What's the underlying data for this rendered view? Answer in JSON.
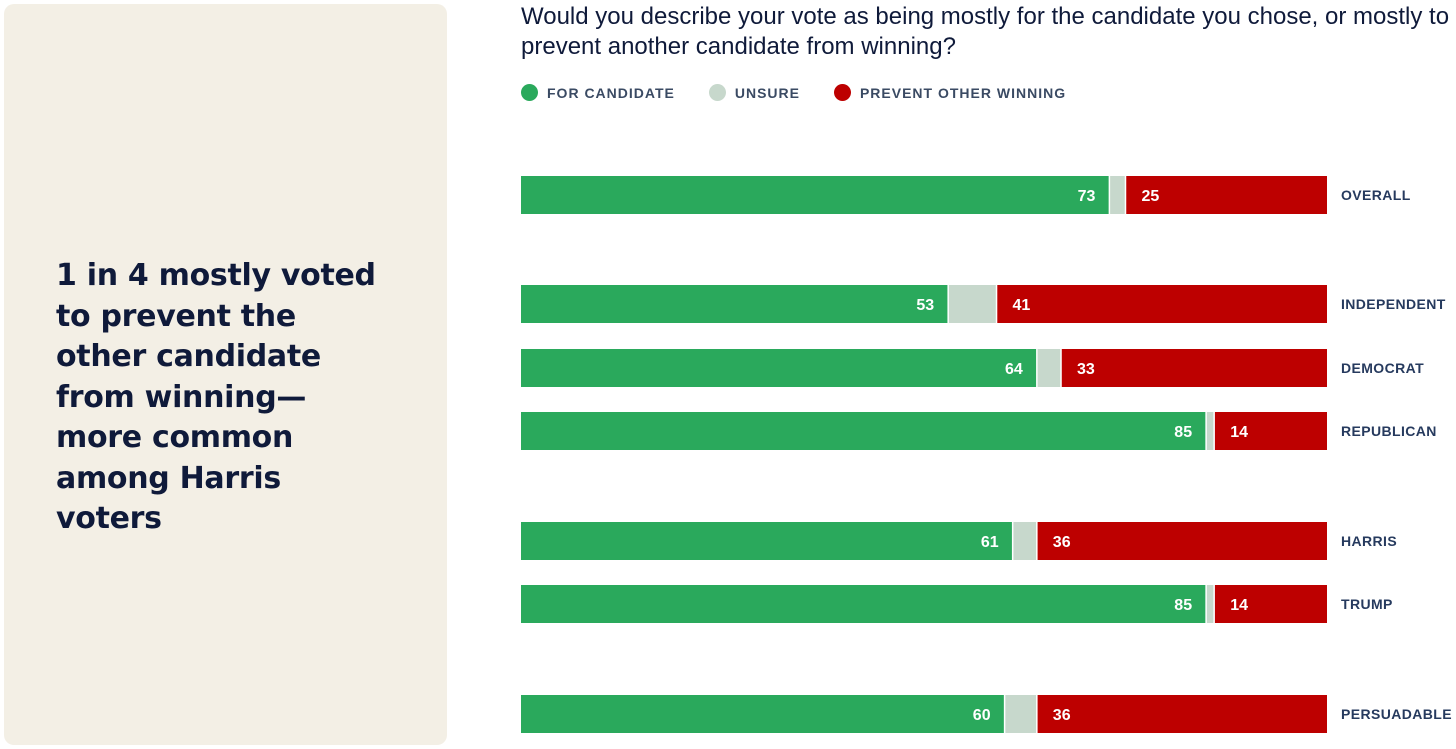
{
  "headline": "1 in 4 mostly voted to prevent the other candidate from winning— more common among Harris voters",
  "colors": {
    "for_candidate": "#2aa95c",
    "unsure": "#c7d8cc",
    "prevent": "#bd0000",
    "panel": "#f3efe5",
    "text_dark": "#0f1a3a"
  },
  "chart_data": {
    "type": "bar",
    "orientation": "horizontal",
    "stacked": true,
    "title": "Would you describe your vote as being mostly for the candidate you chose, or mostly to prevent another candidate from winning?",
    "legend": [
      {
        "key": "for_candidate",
        "label": "FOR CANDIDATE",
        "color": "#2aa95c"
      },
      {
        "key": "unsure",
        "label": "UNSURE",
        "color": "#c7d8cc"
      },
      {
        "key": "prevent",
        "label": "PREVENT OTHER WINNING",
        "color": "#bd0000"
      }
    ],
    "xlim": [
      0,
      100
    ],
    "categories": [
      "OVERALL",
      "INDEPENDENT",
      "DEMOCRAT",
      "REPUBLICAN",
      "HARRIS",
      "TRUMP",
      "PERSUADABLE"
    ],
    "groups": [
      [
        "OVERALL"
      ],
      [
        "INDEPENDENT",
        "DEMOCRAT",
        "REPUBLICAN"
      ],
      [
        "HARRIS",
        "TRUMP"
      ],
      [
        "PERSUADABLE"
      ]
    ],
    "series": [
      {
        "name": "FOR CANDIDATE",
        "values": [
          73,
          53,
          64,
          85,
          61,
          85,
          60
        ]
      },
      {
        "name": "UNSURE",
        "values": [
          2,
          6,
          3,
          1,
          3,
          1,
          4
        ]
      },
      {
        "name": "PREVENT OTHER WINNING",
        "values": [
          25,
          41,
          33,
          14,
          36,
          14,
          36
        ]
      }
    ],
    "data_labels": {
      "for_candidate": [
        "73",
        "53",
        "64",
        "85",
        "61",
        "85",
        "60"
      ],
      "prevent": [
        "25",
        "41",
        "33",
        "14",
        "36",
        "14",
        "36"
      ]
    }
  }
}
